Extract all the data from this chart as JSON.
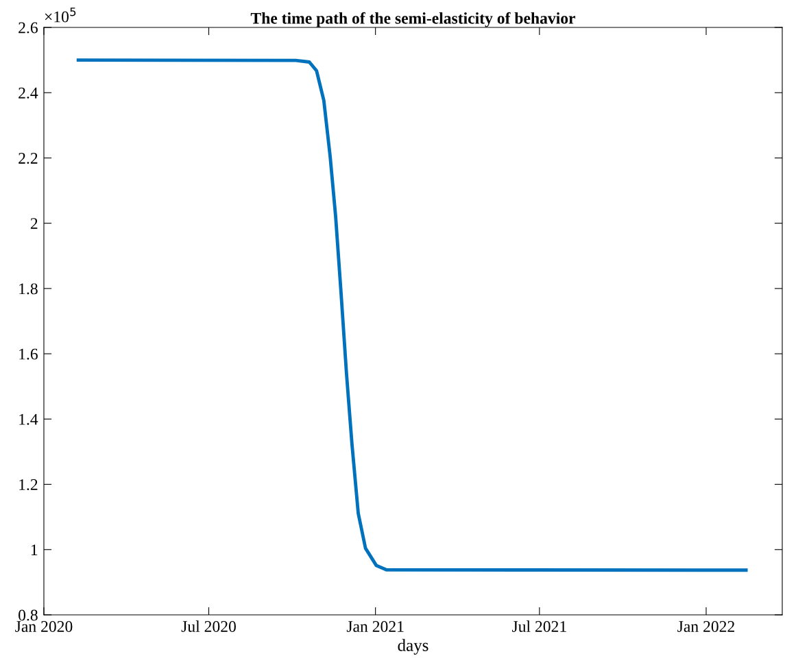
{
  "chart_data": {
    "type": "line",
    "title": "The time path of the semi-elasticity of behavior",
    "xlabel": "days",
    "annotations": [
      "×10$^{5}$"
    ],
    "x": [
      "2020-02-08",
      "2020-10-05",
      "2020-10-20",
      "2020-10-28",
      "2020-11-05",
      "2020-11-12",
      "2020-11-18",
      "2020-11-24",
      "2020-11-30",
      "2020-12-06",
      "2020-12-13",
      "2020-12-21",
      "2021-01-02",
      "2021-01-13",
      "2022-02-14"
    ],
    "series": [
      {
        "color": "#0072bd",
        "values": [
          2.5,
          2.499,
          2.494,
          2.467,
          2.376,
          2.204,
          2.022,
          1.787,
          1.54,
          1.325,
          1.111,
          1.004,
          0.951,
          0.938,
          0.937
        ]
      }
    ],
    "xlim": [
      "2020-01-01",
      "2022-03-26"
    ],
    "xticks": [
      {
        "value": "2020-01-01",
        "label": "Jan 2020"
      },
      {
        "value": "2020-07-01",
        "label": "Jul 2020"
      },
      {
        "value": "2021-01-01",
        "label": "Jan 2021"
      },
      {
        "value": "2021-07-01",
        "label": "Jul 2021"
      },
      {
        "value": "2022-01-01",
        "label": "Jan 2022"
      }
    ],
    "ylim": [
      0.8,
      2.6
    ],
    "yticks": [
      0.8,
      1,
      1.2,
      1.4,
      1.6,
      1.8,
      2,
      2.2,
      2.4,
      2.6
    ],
    "grid": false,
    "legend": false,
    "marker": "none",
    "line_style": "solid"
  }
}
